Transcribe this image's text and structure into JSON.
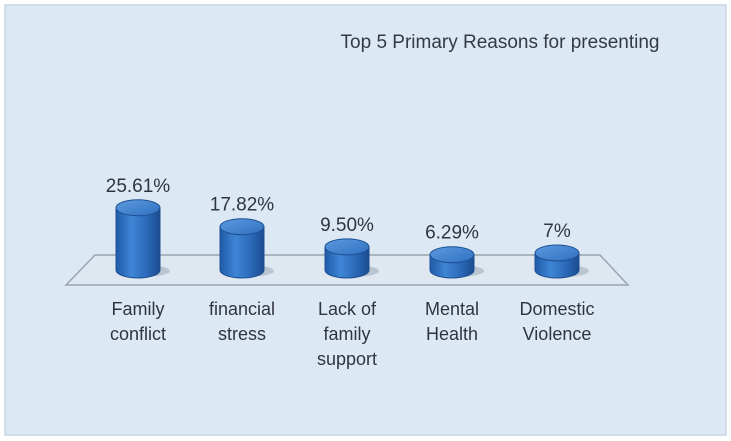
{
  "chart_data": {
    "type": "bar",
    "title": "Top 5 Primary Reasons for presenting",
    "categories": [
      [
        "Family",
        "conflict"
      ],
      [
        "financial",
        "stress"
      ],
      [
        "Lack of",
        "family",
        "support"
      ],
      [
        "Mental",
        "Health"
      ],
      [
        "Domestic",
        "Violence"
      ]
    ],
    "values": [
      25.61,
      17.82,
      9.5,
      6.29,
      7
    ],
    "data_labels": [
      "25.61%",
      "17.82%",
      "9.50%",
      "6.29%",
      "7%"
    ],
    "xlabel": "",
    "ylabel": "",
    "grid": false,
    "legend": "none"
  },
  "colors": {
    "background": "#dce9f5",
    "frame": "#c9d5e2",
    "bar_body": "#2f6fbf",
    "bar_top": "#3d82d2",
    "bar_edge": "#1e4f91",
    "floor": "#dfe8f1",
    "floor_edge": "#9aa4ae"
  }
}
